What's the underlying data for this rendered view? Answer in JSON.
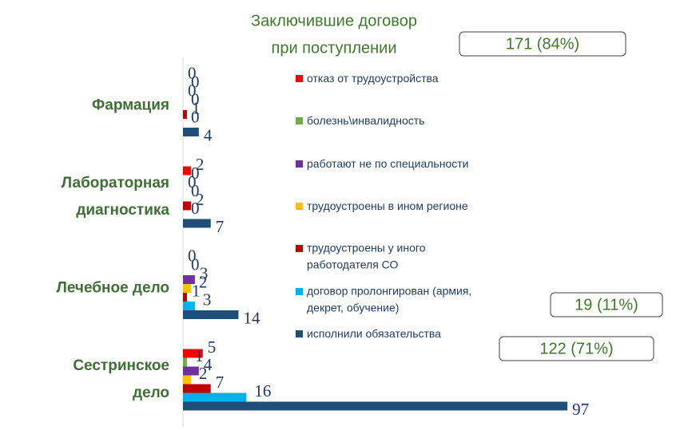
{
  "chart_data": {
    "type": "hbar",
    "title": [
      "Заключившие договор",
      "при поступлении"
    ],
    "categories": [
      "Фармация",
      "Лабораторная\nдиагностика",
      "Лечебное дело",
      "Сестринское\nдело"
    ],
    "series": [
      {
        "name": "отказ от трудоустройства",
        "color": "#ff0000",
        "values": [
          0,
          2,
          0,
          5
        ]
      },
      {
        "name": "болезнь\\инвалидность",
        "color": "#70ad47",
        "values": [
          0,
          0,
          0,
          1
        ]
      },
      {
        "name": "работают не по специальности",
        "color": "#7030a0",
        "values": [
          0,
          0,
          3,
          4
        ]
      },
      {
        "name": "трудоустроены в ином регионе",
        "color": "#ffc000",
        "values": [
          0,
          0,
          2,
          2
        ]
      },
      {
        "name": "трудоустроены у иного\nработодателя СО",
        "color": "#c00000",
        "values": [
          1,
          2,
          1,
          7
        ]
      },
      {
        "name": "договор пролонгирован (армия,\nдекрет, обучение)",
        "color": "#00b0f0",
        "values": [
          0,
          0,
          3,
          16
        ]
      },
      {
        "name": "исполнили обязательства",
        "color": "#1f4e79",
        "values": [
          4,
          7,
          14,
          97
        ]
      }
    ],
    "xlim": [
      0,
      100
    ],
    "annotations": [
      "171 (84%)",
      "19 (11%)",
      "122 (71%)"
    ]
  }
}
